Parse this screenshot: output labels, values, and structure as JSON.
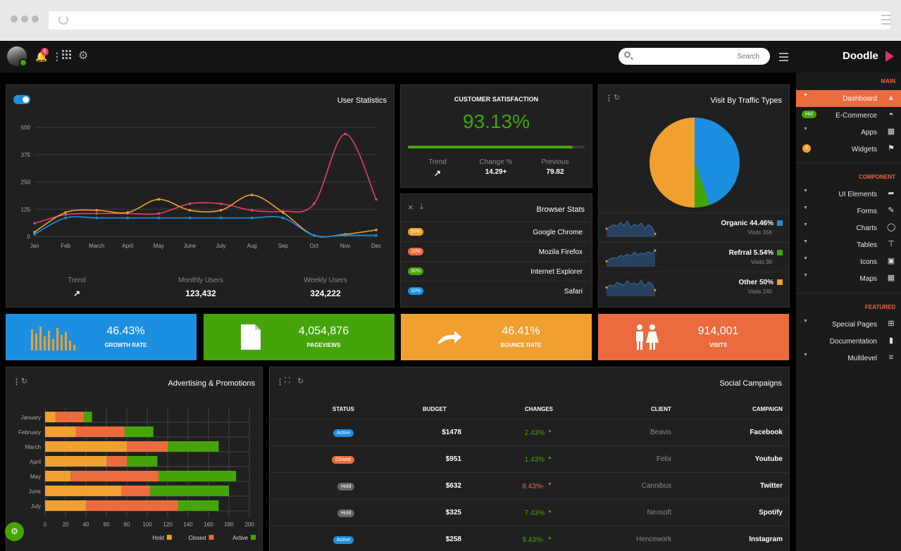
{
  "topbar": {
    "notification_count": "5",
    "search_placeholder": "Search",
    "brand": "Doodle"
  },
  "sidebar": {
    "sections": [
      "MAIN",
      "COMPONENT",
      "FEATURED"
    ],
    "items": [
      {
        "label": "Dashboard",
        "icon": "home-icon",
        "active": true
      },
      {
        "label": "E-Commerce",
        "icon": "basket-icon",
        "badge": "Hot"
      },
      {
        "label": "Apps",
        "icon": "grid-icon"
      },
      {
        "label": "Widgets",
        "icon": "flag-icon",
        "badge": "8"
      },
      {
        "label": "UI Elements",
        "icon": "login-icon"
      },
      {
        "label": "Forms",
        "icon": "pencil-icon"
      },
      {
        "label": "Charts",
        "icon": "circle-icon"
      },
      {
        "label": "Tables",
        "icon": "table-icon"
      },
      {
        "label": "Icons",
        "icon": "icons-icon"
      },
      {
        "label": "Maps",
        "icon": "map-icon"
      },
      {
        "label": "Special Pages",
        "icon": "plus-box-icon"
      },
      {
        "label": "Documentation",
        "icon": "doc-icon"
      },
      {
        "label": "Multilevel",
        "icon": "filter-icon"
      }
    ]
  },
  "user_stats": {
    "title": "User Statistics",
    "stats": [
      {
        "label": "Trend",
        "value": ""
      },
      {
        "label": "Monthly Users",
        "value": "123,432"
      },
      {
        "label": "Weekly Users",
        "value": "324,222"
      }
    ]
  },
  "customer_satisfaction": {
    "title": "CUSTOMER SATISFACTION",
    "value": "93.13%",
    "progress": 0.9313,
    "stats": [
      {
        "label": "Trend",
        "value": ""
      },
      {
        "label": "Change %",
        "value": "14.29+"
      },
      {
        "label": "Previous",
        "value": "79.82"
      }
    ]
  },
  "browser_stats": {
    "title": "Browser Stats",
    "rows": [
      {
        "pct": "50%",
        "name": "Google Chrome",
        "color": "#f0a030"
      },
      {
        "pct": "10%",
        "name": "Mozila Firefox",
        "color": "#eb6b3e"
      },
      {
        "pct": "30%",
        "name": "Internet Explorer",
        "color": "#44a40a"
      },
      {
        "pct": "10%",
        "name": "Safari",
        "color": "#1d8fe1"
      }
    ]
  },
  "traffic": {
    "title": "Visit By Traffic Types",
    "rows": [
      {
        "name": "Organic 44.46%",
        "visits": "Visits 356",
        "color": "#1d8fe1"
      },
      {
        "name": "Refrral 5.54%",
        "visits": "Visits 36",
        "color": "#44a40a"
      },
      {
        "name": "Other 50%",
        "visits": "Visits 245",
        "color": "#f0a030"
      }
    ]
  },
  "tiles": [
    {
      "value": "46.43%",
      "label": "GROWTH RATE",
      "color": "#1d8fe1",
      "icon": "bar-chart-icon"
    },
    {
      "value": "4,054,876",
      "label": "PAGEVIEWS",
      "color": "#44a40a",
      "icon": "file-icon"
    },
    {
      "value": "46.41%",
      "label": "BOUNCE RATE",
      "color": "#f0a030",
      "icon": "redo-arrow-icon"
    },
    {
      "value": "914,001",
      "label": "VISITS",
      "color": "#eb6b3e",
      "icon": "people-icon"
    }
  ],
  "advertising": {
    "title": "Advertising & Promotions"
  },
  "social": {
    "title": "Social Campaigns",
    "headers": [
      "STATUS",
      "BUDGET",
      "CHANGES",
      "CLIENT",
      "CAMPAIGN"
    ],
    "rows": [
      {
        "status": "Active",
        "status_color": "#1d8fe1",
        "budget": "$1478",
        "change": "2.43%",
        "dir": "up",
        "client": "Beavis",
        "campaign": "Facebook"
      },
      {
        "status": "Closed",
        "status_color": "#eb6b3e",
        "budget": "$951",
        "change": "1.43%",
        "dir": "up",
        "client": "Felix",
        "campaign": "Youtube"
      },
      {
        "status": "Hold",
        "status_color": "#666666",
        "budget": "$632",
        "change": "8.43%-",
        "dir": "down",
        "client": "Cannibus",
        "campaign": "Twitter"
      },
      {
        "status": "Hold",
        "status_color": "#666666",
        "budget": "$325",
        "change": "7.43%",
        "dir": "up",
        "client": "Neosoft",
        "campaign": "Spotify"
      },
      {
        "status": "Active",
        "status_color": "#1d8fe1",
        "budget": "$258",
        "change": "9.43%-",
        "dir": "up",
        "client": "Hencework",
        "campaign": "Instagram"
      }
    ]
  },
  "chart_data": [
    {
      "type": "line",
      "categories": [
        "Jan",
        "Feb",
        "March",
        "April",
        "May",
        "June",
        "July",
        "Aug",
        "Sep",
        "Oct",
        "Nov",
        "Dec"
      ],
      "ylim": [
        0,
        500
      ],
      "yticks": [
        0,
        125,
        250,
        375,
        500
      ],
      "series": [
        {
          "color": "#e04361",
          "values": [
            60,
            100,
            105,
            105,
            105,
            150,
            150,
            120,
            115,
            150,
            470,
            170
          ]
        },
        {
          "color": "#f0a030",
          "values": [
            20,
            110,
            120,
            110,
            170,
            120,
            120,
            190,
            110,
            5,
            10,
            30
          ]
        },
        {
          "color": "#1d8fe1",
          "values": [
            10,
            85,
            85,
            85,
            85,
            85,
            85,
            85,
            85,
            5,
            5,
            5
          ]
        }
      ]
    },
    {
      "type": "pie",
      "slices": [
        {
          "label": "Organic",
          "value": 44.46,
          "color": "#1d8fe1"
        },
        {
          "label": "Refrral",
          "value": 5.54,
          "color": "#44a40a"
        },
        {
          "label": "Other",
          "value": 50,
          "color": "#f0a030"
        }
      ]
    },
    {
      "type": "bar",
      "orientation": "horizontal",
      "stacked": true,
      "categories": [
        "January",
        "February",
        "March",
        "April",
        "May",
        "June",
        "July"
      ],
      "xlim": [
        0,
        200
      ],
      "xticks": [
        0,
        20,
        40,
        60,
        80,
        100,
        120,
        140,
        160,
        180,
        200
      ],
      "series": [
        {
          "name": "Hold",
          "color": "#f0a030",
          "values": [
            10,
            30,
            80,
            60,
            25,
            75,
            40
          ]
        },
        {
          "name": "Closed",
          "color": "#eb6b3e",
          "values": [
            28,
            48,
            40,
            20,
            86,
            28,
            90
          ]
        },
        {
          "name": "Active",
          "color": "#44a40a",
          "values": [
            8,
            28,
            50,
            30,
            76,
            77,
            40
          ]
        }
      ]
    },
    {
      "type": "area",
      "sparklines": [
        [
          30,
          38,
          45,
          40,
          55,
          42,
          60,
          35,
          48,
          40,
          52,
          30,
          45,
          38,
          10
        ],
        [
          20,
          30,
          35,
          32,
          45,
          40,
          50,
          42,
          58,
          46,
          55,
          50,
          60,
          52,
          65
        ],
        [
          30,
          40,
          35,
          50,
          45,
          38,
          55,
          42,
          48,
          40,
          58,
          35,
          50,
          45,
          20
        ]
      ]
    }
  ]
}
